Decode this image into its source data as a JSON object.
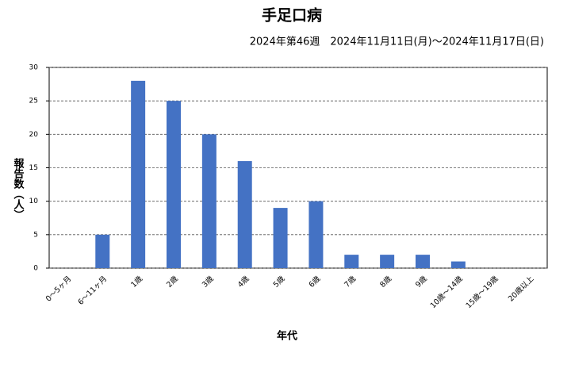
{
  "chart_data": {
    "type": "bar",
    "title": "手足口病",
    "subtitle": "2024年第46週　2024年11月11日(月)～2024年11月17日(日)",
    "x_label": "年代",
    "y_label": "報告数（人）",
    "categories": [
      "0～5ヶ月",
      "6～11ヶ月",
      "1歳",
      "2歳",
      "3歳",
      "4歳",
      "5歳",
      "6歳",
      "7歳",
      "8歳",
      "9歳",
      "10歳～14歳",
      "15歳～19歳",
      "20歳以上"
    ],
    "values": [
      0,
      5,
      28,
      25,
      20,
      16,
      9,
      10,
      2,
      2,
      2,
      1,
      0,
      0
    ],
    "color": "#4472c4",
    "ylim": [
      0,
      30
    ],
    "yticks": [
      0,
      5,
      10,
      15,
      20,
      25,
      30
    ],
    "grid": true
  }
}
